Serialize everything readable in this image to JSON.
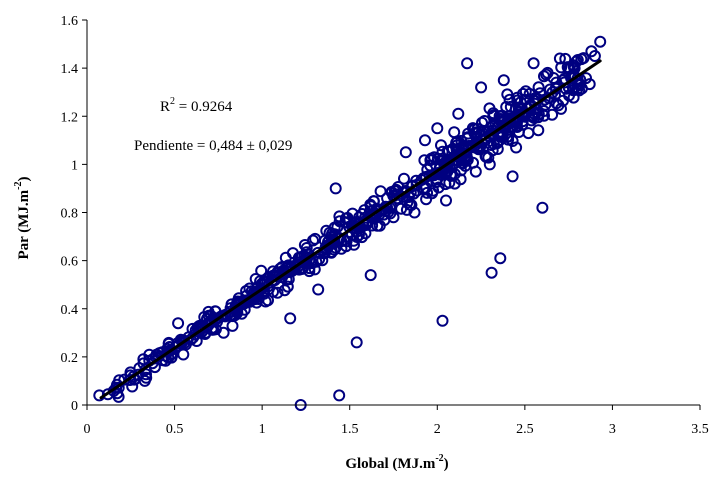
{
  "chart_data": {
    "type": "scatter",
    "title": "",
    "xlabel": "Global  (MJ.m",
    "xlabel_sup": "-2",
    "xlabel_end": ")",
    "ylabel": "Par  (MJ.m",
    "ylabel_sup": "-2",
    "ylabel_end": ")",
    "xlim": [
      0,
      3.5
    ],
    "ylim": [
      0,
      1.6
    ],
    "x_ticks": [
      "0",
      "0.5",
      "1",
      "1.5",
      "2",
      "2.5",
      "3",
      "3.5"
    ],
    "y_ticks": [
      "0",
      "0.2",
      "0.4",
      "0.6",
      "0.8",
      "1",
      "1.2",
      "1.4",
      "1.6"
    ],
    "grid": false,
    "legend": "none",
    "marker_color": "#000080",
    "line_color": "#000000",
    "annotations": {
      "r2_prefix": "R",
      "r2_sup": "2",
      "r2_value": " = 0.9264",
      "slope": "Pendiente = 0,484 ± 0,029"
    },
    "trendline": {
      "x": [
        0.08,
        2.93
      ],
      "y": [
        0.03,
        1.43
      ]
    },
    "trend_band": {
      "x_min": 0.08,
      "x_max": 2.93,
      "spread": 0.05,
      "count": 620
    },
    "outliers": [
      {
        "x": 1.22,
        "y": 0.0
      },
      {
        "x": 1.44,
        "y": 0.04
      },
      {
        "x": 1.16,
        "y": 0.36
      },
      {
        "x": 1.54,
        "y": 0.26
      },
      {
        "x": 2.03,
        "y": 0.35
      },
      {
        "x": 1.62,
        "y": 0.54
      },
      {
        "x": 2.31,
        "y": 0.55
      },
      {
        "x": 2.36,
        "y": 0.61
      },
      {
        "x": 2.6,
        "y": 0.82
      },
      {
        "x": 2.43,
        "y": 0.95
      },
      {
        "x": 2.17,
        "y": 1.42
      },
      {
        "x": 2.93,
        "y": 1.51
      },
      {
        "x": 0.52,
        "y": 0.34
      },
      {
        "x": 0.07,
        "y": 0.04
      },
      {
        "x": 1.42,
        "y": 0.9
      },
      {
        "x": 1.82,
        "y": 1.05
      },
      {
        "x": 1.93,
        "y": 1.1
      },
      {
        "x": 2.0,
        "y": 1.15
      },
      {
        "x": 2.12,
        "y": 1.21
      },
      {
        "x": 2.25,
        "y": 1.32
      },
      {
        "x": 2.38,
        "y": 1.35
      },
      {
        "x": 2.55,
        "y": 1.42
      },
      {
        "x": 2.63,
        "y": 1.38
      },
      {
        "x": 2.7,
        "y": 1.44
      },
      {
        "x": 2.88,
        "y": 1.47
      },
      {
        "x": 2.22,
        "y": 0.97
      },
      {
        "x": 2.1,
        "y": 0.92
      },
      {
        "x": 1.97,
        "y": 0.88
      },
      {
        "x": 1.75,
        "y": 0.78
      },
      {
        "x": 1.87,
        "y": 0.8
      },
      {
        "x": 2.05,
        "y": 0.85
      },
      {
        "x": 2.3,
        "y": 1.0
      },
      {
        "x": 2.45,
        "y": 1.07
      },
      {
        "x": 2.52,
        "y": 1.13
      },
      {
        "x": 1.32,
        "y": 0.48
      },
      {
        "x": 1.02,
        "y": 0.43
      },
      {
        "x": 0.78,
        "y": 0.3
      },
      {
        "x": 0.55,
        "y": 0.21
      },
      {
        "x": 0.33,
        "y": 0.1
      },
      {
        "x": 2.75,
        "y": 1.32
      }
    ]
  }
}
